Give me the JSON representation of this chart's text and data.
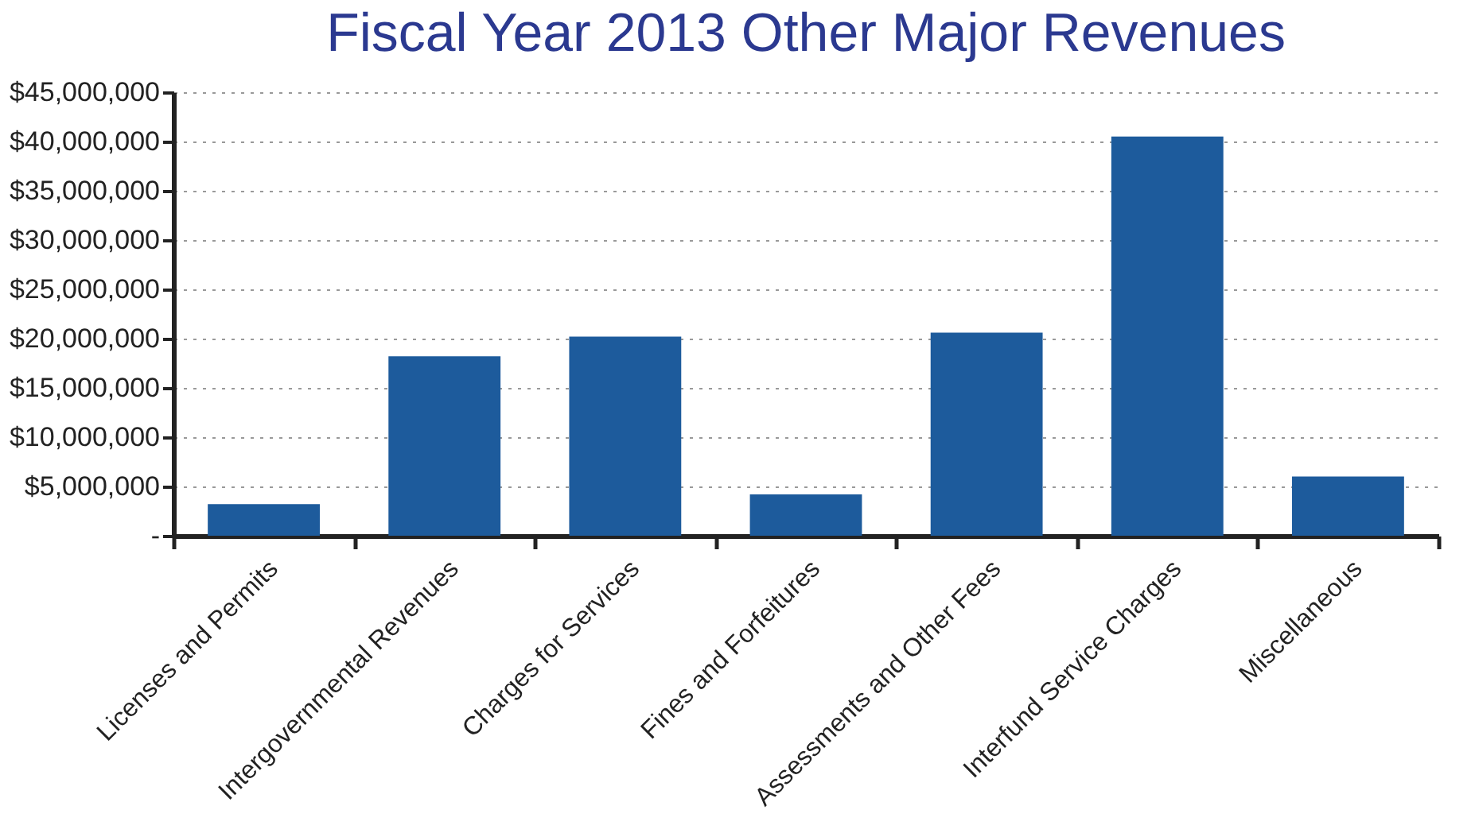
{
  "chart_data": {
    "type": "bar",
    "title": "Fiscal Year 2013 Other Major Revenues",
    "categories": [
      "Licenses and Permits",
      "Intergovernmental Revenues",
      "Charges for Services",
      "Fines and Forfeitures",
      "Assessments and Other Fees",
      "Interfund Service Charges",
      "Miscellaneous"
    ],
    "values": [
      3200000,
      18200000,
      20200000,
      4200000,
      20600000,
      40500000,
      6000000
    ],
    "color": "#1d5b9c",
    "ylim": [
      0,
      45000000
    ],
    "yticks": [
      {
        "value": 0,
        "label": "-"
      },
      {
        "value": 5000000,
        "label": "$5,000,000"
      },
      {
        "value": 10000000,
        "label": "$10,000,000"
      },
      {
        "value": 15000000,
        "label": "$15,000,000"
      },
      {
        "value": 20000000,
        "label": "$20,000,000"
      },
      {
        "value": 25000000,
        "label": "$25,000,000"
      },
      {
        "value": 30000000,
        "label": "$30,000,000"
      },
      {
        "value": 35000000,
        "label": "$35,000,000"
      },
      {
        "value": 40000000,
        "label": "$40,000,000"
      },
      {
        "value": 45000000,
        "label": "$45,000,000"
      }
    ],
    "grid": "y"
  }
}
